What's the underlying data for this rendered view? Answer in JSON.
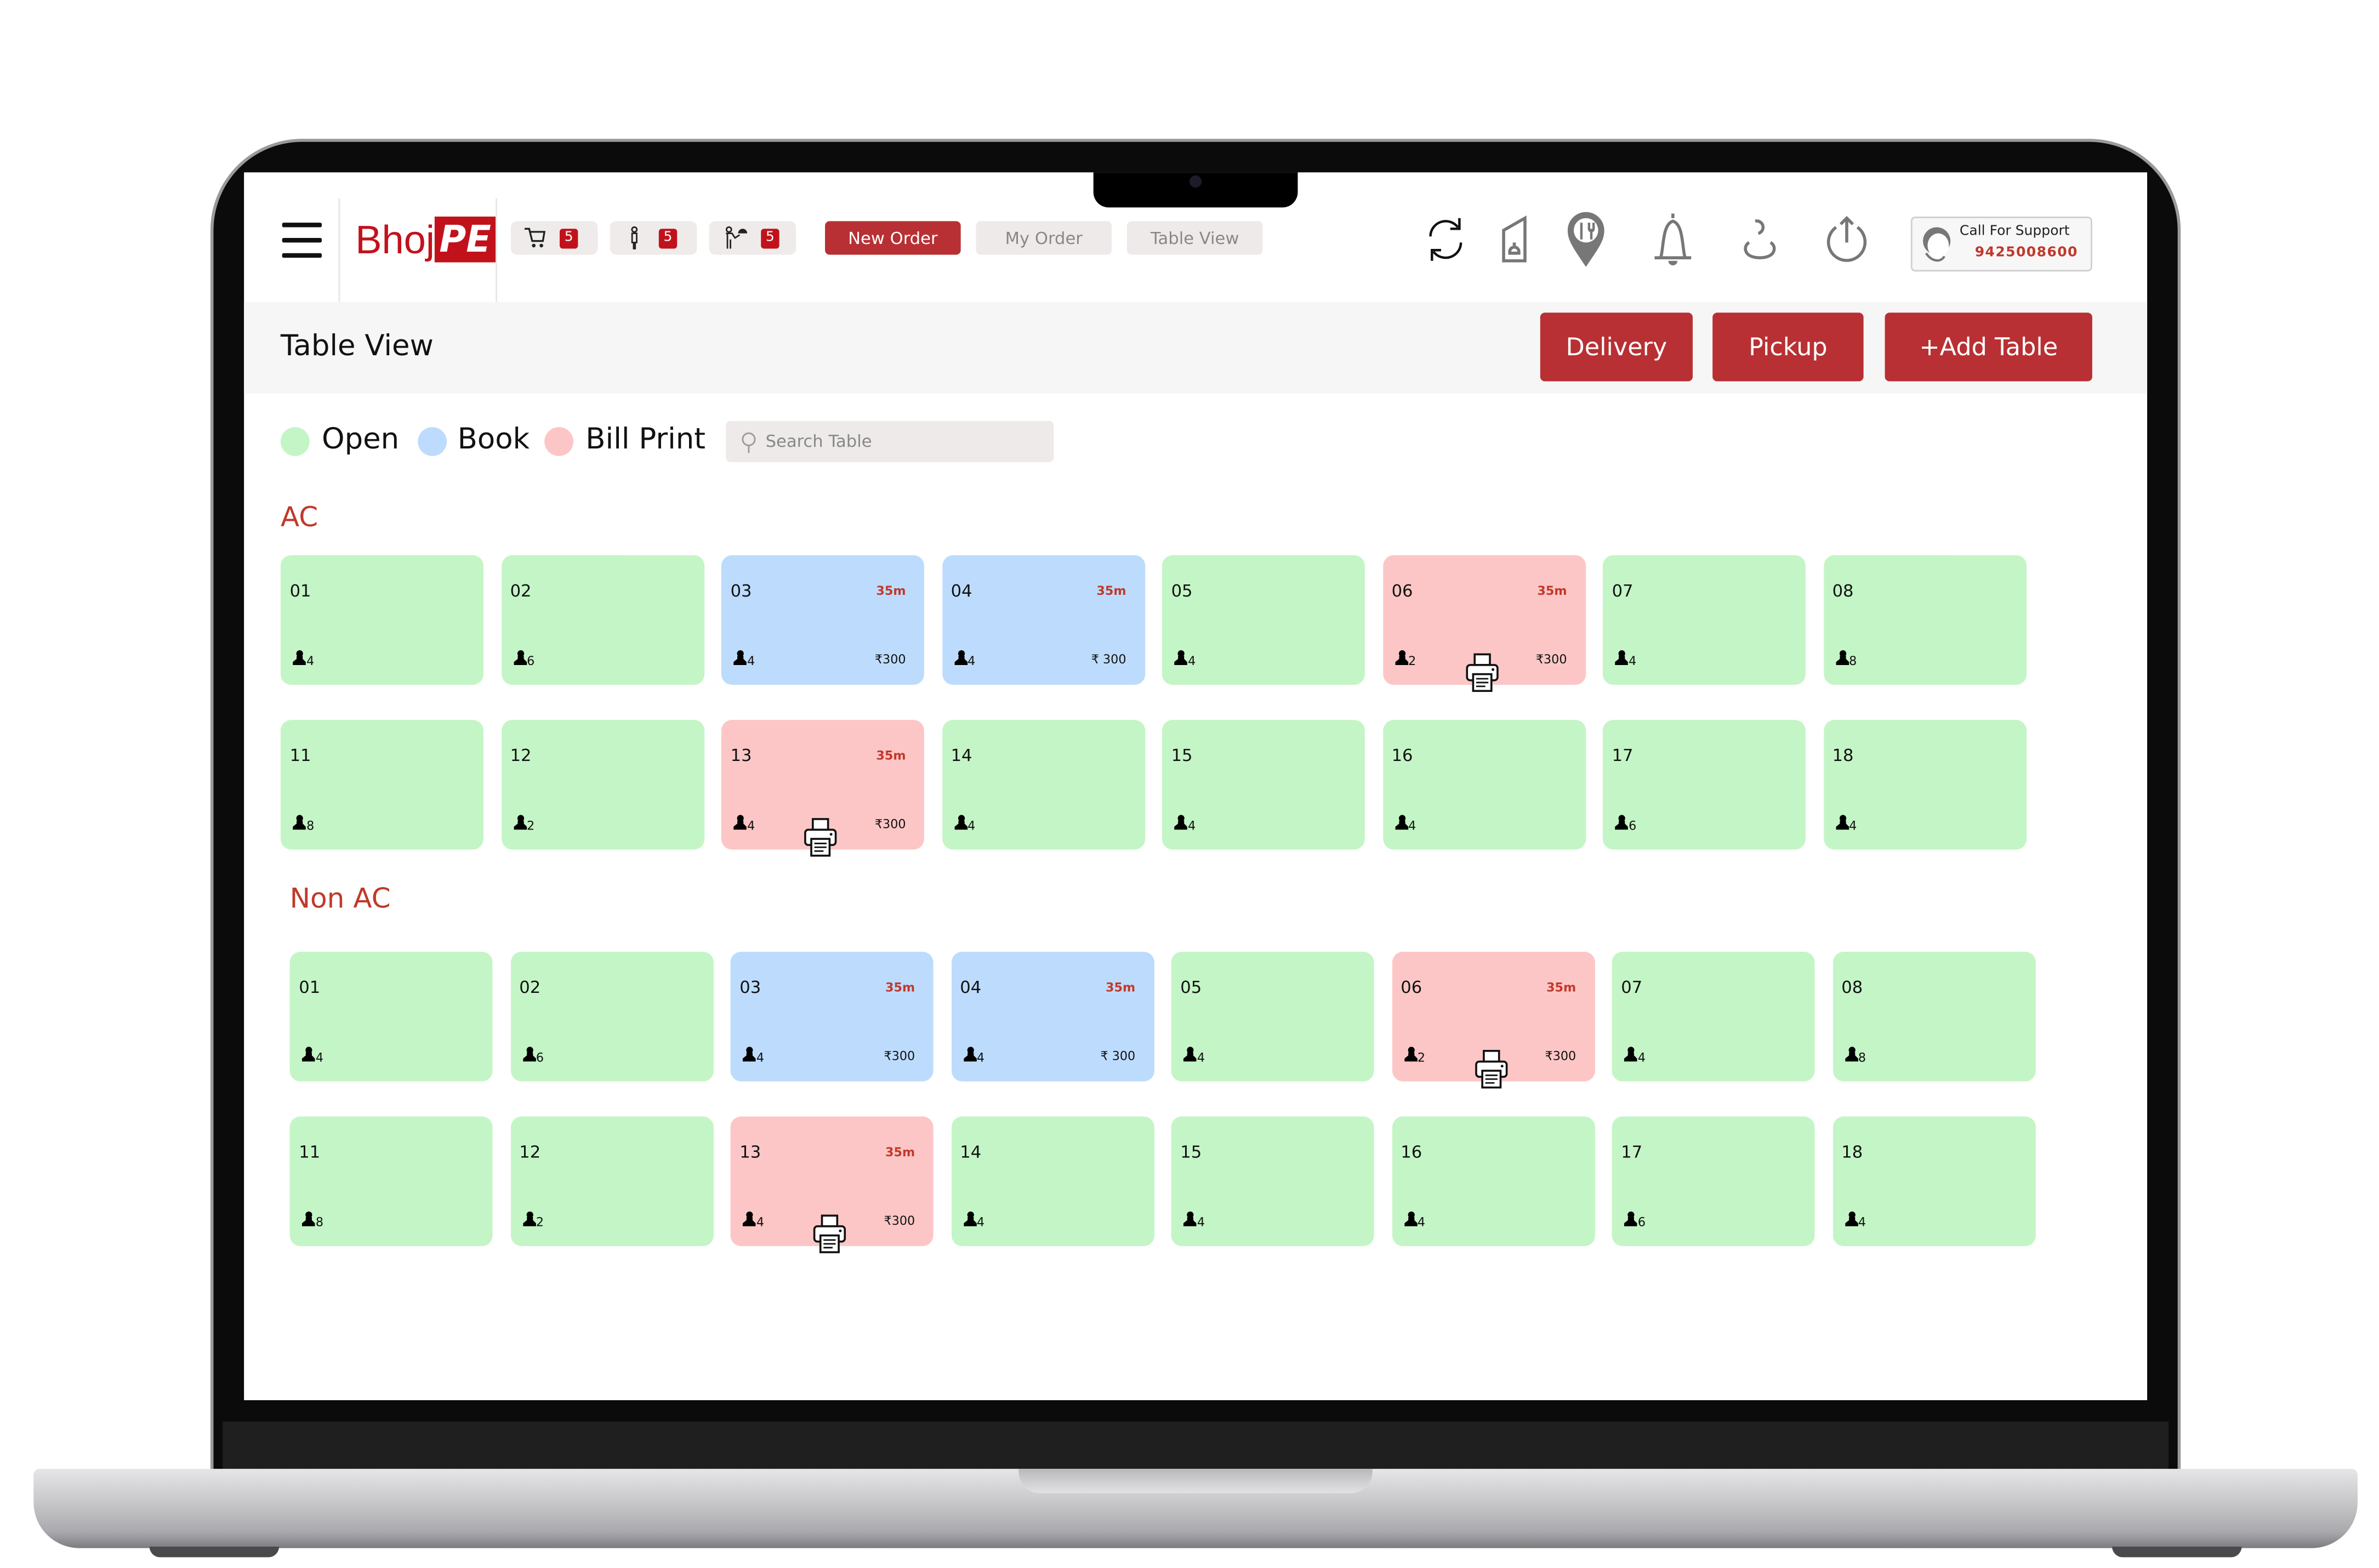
{
  "header": {
    "logo": {
      "part1": "Bhoj",
      "part2": "PE"
    },
    "counters": [
      {
        "icon": "cart-icon",
        "count": "5"
      },
      {
        "icon": "person-standing-icon",
        "count": "5"
      },
      {
        "icon": "waiter-icon",
        "count": "5"
      }
    ],
    "nav": {
      "new_order": "New Order",
      "my_order": "My Order",
      "table_view": "Table View"
    },
    "icons": [
      "refresh-icon",
      "menu-card-icon",
      "restaurant-location-icon",
      "bell-icon",
      "user-icon",
      "power-icon"
    ],
    "support": {
      "label": "Call For Support",
      "phone": "9425008600"
    }
  },
  "toolbar": {
    "title": "Table View",
    "delivery": "Delivery",
    "pickup": "Pickup",
    "add_table": "+Add Table"
  },
  "legend": [
    {
      "label": "Open",
      "color": "#c4f5c6"
    },
    {
      "label": "Book",
      "color": "#bddcfd"
    },
    {
      "label": "Bill Print",
      "color": "#fdc6c6"
    }
  ],
  "search": {
    "placeholder": "Search Table"
  },
  "colors": {
    "open": "#c4f5c6",
    "book": "#bddcfd",
    "bill_print": "#fdc6c6",
    "accent": "#b83033"
  },
  "sections": [
    {
      "title": "AC",
      "tables": [
        {
          "num": "01",
          "status": "open",
          "guests": "4"
        },
        {
          "num": "02",
          "status": "open",
          "guests": "6"
        },
        {
          "num": "03",
          "status": "book",
          "guests": "4",
          "time": "35m",
          "amount": "₹300"
        },
        {
          "num": "04",
          "status": "book",
          "guests": "4",
          "time": "35m",
          "amount": "₹ 300"
        },
        {
          "num": "05",
          "status": "open",
          "guests": "4"
        },
        {
          "num": "06",
          "status": "bill_print",
          "guests": "2",
          "time": "35m",
          "amount": "₹300",
          "printer": true
        },
        {
          "num": "07",
          "status": "open",
          "guests": "4"
        },
        {
          "num": "08",
          "status": "open",
          "guests": "8"
        },
        {
          "num": "11",
          "status": "open",
          "guests": "8"
        },
        {
          "num": "12",
          "status": "open",
          "guests": "2"
        },
        {
          "num": "13",
          "status": "bill_print",
          "guests": "4",
          "time": "35m",
          "amount": "₹300",
          "printer": true
        },
        {
          "num": "14",
          "status": "open",
          "guests": "4"
        },
        {
          "num": "15",
          "status": "open",
          "guests": "4"
        },
        {
          "num": "16",
          "status": "open",
          "guests": "4"
        },
        {
          "num": "17",
          "status": "open",
          "guests": "6"
        },
        {
          "num": "18",
          "status": "open",
          "guests": "4"
        }
      ]
    },
    {
      "title": "Non AC",
      "tables": [
        {
          "num": "01",
          "status": "open",
          "guests": "4"
        },
        {
          "num": "02",
          "status": "open",
          "guests": "6"
        },
        {
          "num": "03",
          "status": "book",
          "guests": "4",
          "time": "35m",
          "amount": "₹300"
        },
        {
          "num": "04",
          "status": "book",
          "guests": "4",
          "time": "35m",
          "amount": "₹ 300"
        },
        {
          "num": "05",
          "status": "open",
          "guests": "4"
        },
        {
          "num": "06",
          "status": "bill_print",
          "guests": "2",
          "time": "35m",
          "amount": "₹300",
          "printer": true
        },
        {
          "num": "07",
          "status": "open",
          "guests": "4"
        },
        {
          "num": "08",
          "status": "open",
          "guests": "8"
        },
        {
          "num": "11",
          "status": "open",
          "guests": "8"
        },
        {
          "num": "12",
          "status": "open",
          "guests": "2"
        },
        {
          "num": "13",
          "status": "bill_print",
          "guests": "4",
          "time": "35m",
          "amount": "₹300",
          "printer": true
        },
        {
          "num": "14",
          "status": "open",
          "guests": "4"
        },
        {
          "num": "15",
          "status": "open",
          "guests": "4"
        },
        {
          "num": "16",
          "status": "open",
          "guests": "4"
        },
        {
          "num": "17",
          "status": "open",
          "guests": "6"
        },
        {
          "num": "18",
          "status": "open",
          "guests": "4"
        }
      ]
    }
  ]
}
